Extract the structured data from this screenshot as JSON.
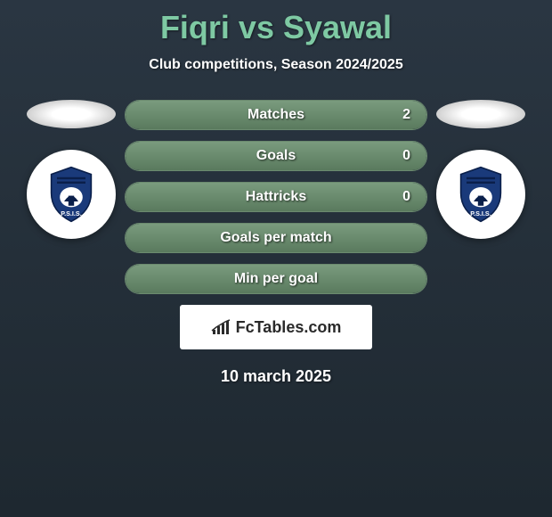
{
  "title": "Fiqri vs Syawal",
  "subtitle": "Club competitions, Season 2024/2025",
  "date": "10 march 2025",
  "brand": "FcTables.com",
  "colors": {
    "title_color": "#7ec9a3",
    "bar_border": "#6b8a6f",
    "bar_fill_top": "#7a9b7e",
    "bar_fill_bottom": "#5a7a5e",
    "background_top": "#2a3642",
    "background_bottom": "#1e2830",
    "text_white": "#ffffff",
    "logo_blue": "#1a3a7a",
    "logo_stripe": "#0a1f4a"
  },
  "stats": [
    {
      "label": "Matches",
      "value": "2",
      "fill_pct": 100
    },
    {
      "label": "Goals",
      "value": "0",
      "fill_pct": 100
    },
    {
      "label": "Hattricks",
      "value": "0",
      "fill_pct": 100
    },
    {
      "label": "Goals per match",
      "value": "",
      "fill_pct": 100
    },
    {
      "label": "Min per goal",
      "value": "",
      "fill_pct": 100
    }
  ],
  "club": {
    "name": "P.S.I.S."
  }
}
